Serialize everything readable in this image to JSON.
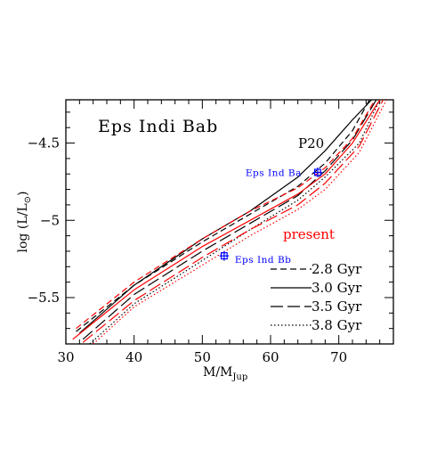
{
  "chart_data": {
    "type": "line",
    "title": "Eps Indi Bab",
    "xlabel_main": "M/M",
    "xlabel_sub": "Jup",
    "ylabel_main": "log (L/L",
    "ylabel_sun": "⊙",
    "ylabel_close": ")",
    "xlim": [
      30,
      78
    ],
    "ylim": [
      -5.8,
      -4.22
    ],
    "x_ticks": [
      30,
      40,
      50,
      60,
      70
    ],
    "x_tick_labels": [
      "30",
      "40",
      "50",
      "60",
      "70"
    ],
    "y_ticks": [
      -4.5,
      -5.0,
      -5.5
    ],
    "y_tick_labels": [
      "−4.5",
      "−5",
      "−5.5"
    ],
    "x_minor_step": 2,
    "y_minor_step": 0.1,
    "grid": false,
    "colors": {
      "p20": "#000000",
      "present": "#ff0000",
      "points": "#0000ff"
    },
    "model_labels": {
      "p20": "P20",
      "present": "present"
    },
    "legend": {
      "placement": "bottom-right",
      "entries": [
        {
          "label": "2.8 Gyr",
          "dash": "dashed"
        },
        {
          "label": "3.0 Gyr",
          "dash": "solid"
        },
        {
          "label": "3.5 Gyr",
          "dash": "longdash"
        },
        {
          "label": "3.8 Gyr",
          "dash": "dotted"
        }
      ]
    },
    "points": [
      {
        "name": "Eps Ind Ba",
        "x": 66.9,
        "y": -4.69,
        "xerr": 0.3,
        "yerr": 0.02
      },
      {
        "name": "Eps Ind Bb",
        "x": 53.2,
        "y": -5.23,
        "xerr": 0.3,
        "yerr": 0.02
      }
    ],
    "series": [
      {
        "model": "p20",
        "dash": "dashed",
        "x": [
          31.5,
          40,
          50,
          57,
          64,
          68,
          72,
          74.5
        ],
        "y": [
          -5.72,
          -5.42,
          -5.14,
          -4.96,
          -4.78,
          -4.63,
          -4.42,
          -4.22
        ]
      },
      {
        "model": "p20",
        "dash": "solid",
        "x": [
          32,
          40,
          50,
          57,
          64,
          68,
          72,
          74.8
        ],
        "y": [
          -5.73,
          -5.42,
          -5.12,
          -4.94,
          -4.72,
          -4.55,
          -4.35,
          -4.22
        ]
      },
      {
        "model": "p20",
        "dash": "longdash",
        "x": [
          32.5,
          40,
          50,
          57,
          64,
          68,
          72,
          75.5
        ],
        "y": [
          -5.77,
          -5.48,
          -5.2,
          -5.02,
          -4.84,
          -4.68,
          -4.48,
          -4.22
        ]
      },
      {
        "model": "p20",
        "dash": "dotted",
        "x": [
          33.5,
          40,
          50,
          57,
          64,
          68,
          73,
          76
        ],
        "y": [
          -5.8,
          -5.54,
          -5.26,
          -5.06,
          -4.87,
          -4.72,
          -4.5,
          -4.22
        ]
      },
      {
        "model": "present",
        "dash": "dashed",
        "x": [
          31.5,
          40,
          50,
          57,
          64,
          68,
          72,
          75.3
        ],
        "y": [
          -5.7,
          -5.4,
          -5.12,
          -4.94,
          -4.79,
          -4.66,
          -4.47,
          -4.22
        ]
      },
      {
        "model": "present",
        "dash": "solid",
        "x": [
          31,
          40,
          50,
          57,
          64,
          68,
          72,
          76
        ],
        "y": [
          -5.77,
          -5.45,
          -5.17,
          -5.0,
          -4.83,
          -4.7,
          -4.5,
          -4.22
        ]
      },
      {
        "model": "present",
        "dash": "longdash",
        "x": [
          32.5,
          40,
          50,
          57,
          64,
          68,
          73,
          76.5
        ],
        "y": [
          -5.79,
          -5.52,
          -5.24,
          -5.06,
          -4.9,
          -4.76,
          -4.52,
          -4.22
        ]
      },
      {
        "model": "present",
        "dash": "dotted",
        "x": [
          34,
          40,
          50,
          57,
          64,
          68,
          73,
          77
        ],
        "y": [
          -5.8,
          -5.56,
          -5.29,
          -5.1,
          -4.93,
          -4.8,
          -4.56,
          -4.22
        ]
      }
    ]
  }
}
